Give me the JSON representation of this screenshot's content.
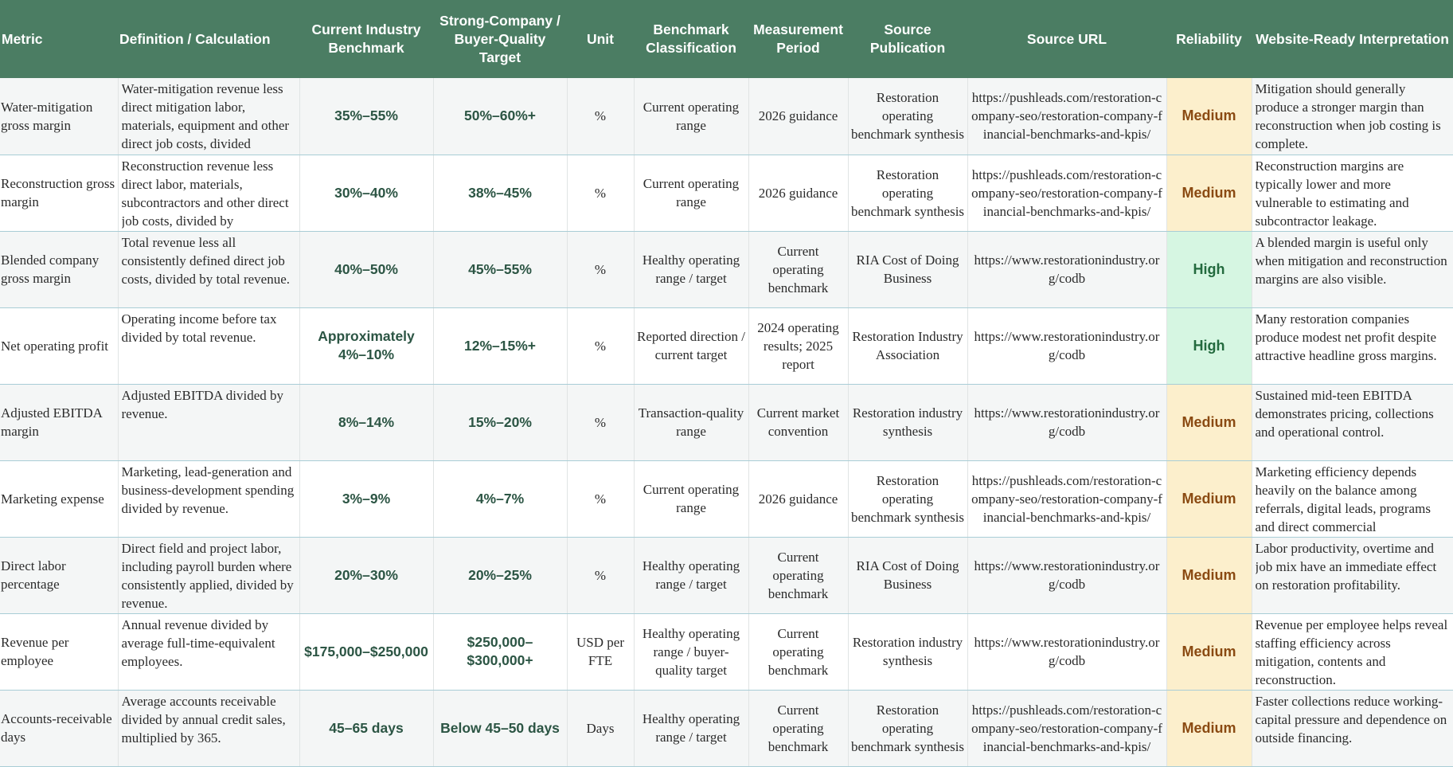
{
  "headers": {
    "metric": "Metric",
    "definition": "Definition / Calculation",
    "current": "Current Industry Benchmark",
    "target": "Strong-Company / Buyer-Quality Target",
    "unit": "Unit",
    "classification": "Benchmark Classification",
    "period": "Measurement Period",
    "publication": "Source Publication",
    "url": "Source URL",
    "reliability": "Reliability",
    "interpretation": "Website-Ready Interpretation"
  },
  "rows": [
    {
      "metric": "Water-mitigation gross margin",
      "definition": "Water-mitigation revenue less direct mitigation labor, materials, equipment and other direct job costs, divided",
      "current": "35%–55%",
      "target": "50%–60%+",
      "unit": "%",
      "classification": "Current operating range",
      "period": "2026 guidance",
      "publication": "Restoration operating benchmark synthesis",
      "url": "https://pushleads.com/restoration-company-seo/restoration-company-financial-benchmarks-and-kpis/",
      "reliability": "Medium",
      "interpretation": "Mitigation should generally produce a stronger margin than reconstruction when job costing is complete."
    },
    {
      "metric": "Reconstruction gross margin",
      "definition": "Reconstruction revenue less direct labor, materials, subcontractors and other direct job costs, divided by",
      "current": "30%–40%",
      "target": "38%–45%",
      "unit": "%",
      "classification": "Current operating range",
      "period": "2026 guidance",
      "publication": "Restoration operating benchmark synthesis",
      "url": "https://pushleads.com/restoration-company-seo/restoration-company-financial-benchmarks-and-kpis/",
      "reliability": "Medium",
      "interpretation": "Reconstruction margins are typically lower and more vulnerable to estimating and subcontractor leakage."
    },
    {
      "metric": "Blended company gross margin",
      "definition": "Total revenue less all consistently defined direct job costs, divided by total revenue.",
      "current": "40%–50%",
      "target": "45%–55%",
      "unit": "%",
      "classification": "Healthy operating range / target",
      "period": "Current operating benchmark",
      "publication": "RIA Cost of Doing Business",
      "url": "https://www.restorationindustry.org/codb",
      "reliability": "High",
      "interpretation": "A blended margin is useful only when mitigation and reconstruction margins are also visible."
    },
    {
      "metric": "Net operating profit",
      "definition": "Operating income before tax divided by total revenue.",
      "current": "Approximately 4%–10%",
      "target": "12%–15%+",
      "unit": "%",
      "classification": "Reported direction / current target",
      "period": "2024 operating results; 2025 report",
      "publication": "Restoration Industry Association",
      "url": "https://www.restorationindustry.org/codb",
      "reliability": "High",
      "interpretation": "Many restoration companies produce modest net profit despite attractive headline gross margins."
    },
    {
      "metric": "Adjusted EBITDA margin",
      "definition": "Adjusted EBITDA divided by revenue.",
      "current": "8%–14%",
      "target": "15%–20%",
      "unit": "%",
      "classification": "Transaction-quality range",
      "period": "Current market convention",
      "publication": "Restoration industry synthesis",
      "url": "https://www.restorationindustry.org/codb",
      "reliability": "Medium",
      "interpretation": "Sustained mid-teen EBITDA demonstrates pricing, collections and operational control."
    },
    {
      "metric": "Marketing expense",
      "definition": "Marketing, lead-generation and business-development spending divided by revenue.",
      "current": "3%–9%",
      "target": "4%–7%",
      "unit": "%",
      "classification": "Current operating range",
      "period": "2026 guidance",
      "publication": "Restoration operating benchmark synthesis",
      "url": "https://pushleads.com/restoration-company-seo/restoration-company-financial-benchmarks-and-kpis/",
      "reliability": "Medium",
      "interpretation": "Marketing efficiency depends heavily on the balance among referrals, digital leads, programs and direct commercial"
    },
    {
      "metric": "Direct labor percentage",
      "definition": "Direct field and project labor, including payroll burden where consistently applied, divided by revenue.",
      "current": "20%–30%",
      "target": "20%–25%",
      "unit": "%",
      "classification": "Healthy operating range / target",
      "period": "Current operating benchmark",
      "publication": "RIA Cost of Doing Business",
      "url": "https://www.restorationindustry.org/codb",
      "reliability": "Medium",
      "interpretation": "Labor productivity, overtime and job mix have an immediate effect on restoration profitability."
    },
    {
      "metric": "Revenue per employee",
      "definition": "Annual revenue divided by average full-time-equivalent employees.",
      "current": "$175,000–$250,000",
      "target": "$250,000–$300,000+",
      "unit": "USD per FTE",
      "classification": "Healthy operating range / buyer-quality target",
      "period": "Current operating benchmark",
      "publication": "Restoration industry synthesis",
      "url": "https://www.restorationindustry.org/codb",
      "reliability": "Medium",
      "interpretation": "Revenue per employee helps reveal staffing efficiency across mitigation, contents and reconstruction."
    },
    {
      "metric": "Accounts-receivable days",
      "definition": "Average accounts receivable divided by annual credit sales, multiplied by 365.",
      "current": "45–65 days",
      "target": "Below 45–50 days",
      "unit": "Days",
      "classification": "Healthy operating range / target",
      "period": "Current operating benchmark",
      "publication": "Restoration operating benchmark synthesis",
      "url": "https://pushleads.com/restoration-company-seo/restoration-company-financial-benchmarks-and-kpis/",
      "reliability": "Medium",
      "interpretation": "Faster collections reduce working-capital pressure and dependence on outside financing."
    }
  ],
  "colors": {
    "header_bg": "#4b7d63",
    "reliability_medium_bg": "#fcefcc",
    "reliability_high_bg": "#d6f6e2"
  }
}
